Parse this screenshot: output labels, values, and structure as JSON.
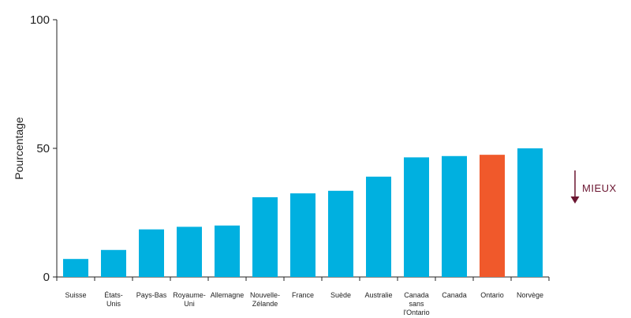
{
  "chart_data": {
    "type": "bar",
    "ylabel": "Pourcentage",
    "ylim": [
      0,
      100
    ],
    "yticks": [
      "0",
      "50",
      "100"
    ],
    "categories": [
      [
        "Suisse"
      ],
      [
        "États-",
        "Unis"
      ],
      [
        "Pays-Bas"
      ],
      [
        "Royaume-",
        "Uni"
      ],
      [
        "Allemagne"
      ],
      [
        "Nouvelle-",
        "Zélande"
      ],
      [
        "France"
      ],
      [
        "Suède"
      ],
      [
        "Australie"
      ],
      [
        "Canada",
        "sans",
        "l'Ontario"
      ],
      [
        "Canada"
      ],
      [
        "Ontario"
      ],
      [
        "Norvège"
      ]
    ],
    "values": [
      7,
      10.5,
      18.5,
      19.5,
      20,
      31,
      32.5,
      33.5,
      39,
      46.5,
      47,
      47.5,
      50
    ],
    "colors": [
      "#00b0e0",
      "#00b0e0",
      "#00b0e0",
      "#00b0e0",
      "#00b0e0",
      "#00b0e0",
      "#00b0e0",
      "#00b0e0",
      "#00b0e0",
      "#00b0e0",
      "#00b0e0",
      "#f0592b",
      "#00b0e0"
    ],
    "annotation": "MIEUX",
    "annotation_color": "#6b1631",
    "grid": false
  }
}
